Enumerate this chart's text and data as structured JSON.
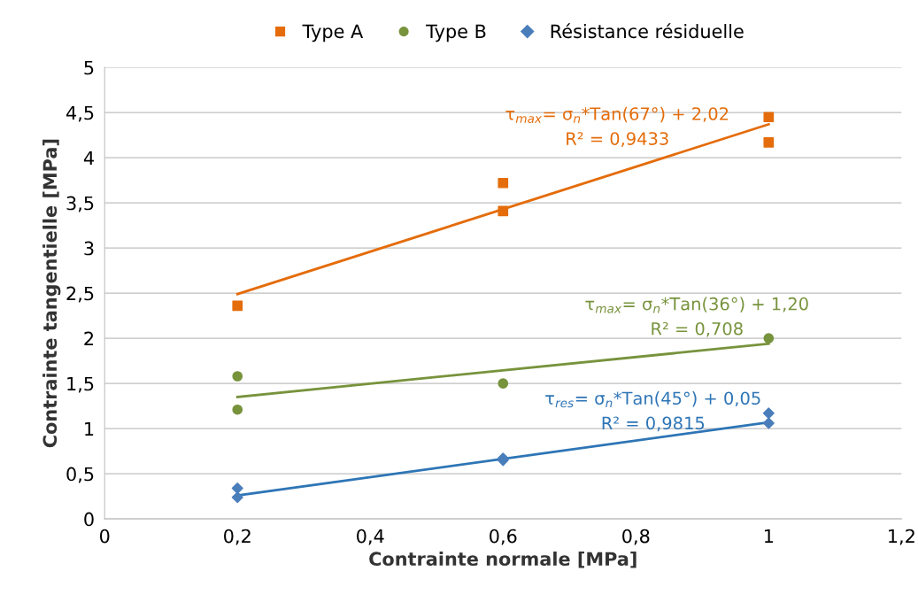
{
  "chart_data": {
    "type": "scatter",
    "xlabel": "Contrainte normale [MPa]",
    "ylabel": "Contrainte tangentielle [MPa]",
    "xlim": [
      0,
      1.2
    ],
    "xticks": [
      0,
      {
        "value": 0.2,
        "label": "0,2"
      },
      {
        "value": 0.4,
        "label": "0,4"
      },
      {
        "value": 0.6,
        "label": "0,6"
      },
      {
        "value": 0.8,
        "label": "0,8"
      },
      1,
      {
        "value": 1.2,
        "label": "1,2"
      }
    ],
    "ylim": [
      0,
      5
    ],
    "yticks": [
      0,
      {
        "value": 0.5,
        "label": "0,5"
      },
      1,
      {
        "value": 1.5,
        "label": "1,5"
      },
      2,
      {
        "value": 2.5,
        "label": "2,5"
      },
      3,
      {
        "value": 3.5,
        "label": "3,5"
      },
      4,
      {
        "value": 4.5,
        "label": "4,5"
      },
      5
    ],
    "grid": "y",
    "legend": "top",
    "series": [
      {
        "name": "Type A",
        "color": "#e46c0a",
        "marker": "square",
        "x": [
          0.2,
          0.6,
          0.6,
          1,
          1
        ],
        "values": [
          2.36,
          3.72,
          3.41,
          4.45,
          4.17
        ]
      },
      {
        "name": "Type B",
        "color": "#77933c",
        "marker": "circle",
        "x": [
          0.2,
          0.2,
          0.6,
          1
        ],
        "values": [
          1.58,
          1.21,
          1.5,
          2.0
        ]
      },
      {
        "name": "Résistance résiduelle",
        "color": "#4a7ebb",
        "marker": "diamond",
        "x": [
          0.2,
          0.2,
          0.6,
          0.6,
          1,
          1
        ],
        "values": [
          0.34,
          0.24,
          0.67,
          0.65,
          1.17,
          1.06
        ]
      },
      {
        "type": "line",
        "color": "#e46c0a",
        "marker": "none",
        "x": [
          0.2,
          1
        ],
        "values": [
          2.49,
          4.37
        ]
      },
      {
        "type": "line",
        "color": "#77933c",
        "marker": "none",
        "x": [
          0.2,
          1
        ],
        "values": [
          1.35,
          1.94
        ]
      },
      {
        "type": "line",
        "color": "#2e75b6",
        "marker": "none",
        "x": [
          0.2,
          1
        ],
        "values": [
          0.26,
          1.07
        ]
      }
    ],
    "annotations": [
      "τ$_{max}$= σ$_{n}$*Tan(67°) + 2,02",
      "R² = 0,9433",
      "τ$_{max}$= σ$_{n}$*Tan(36°) + 1,20",
      "R² = 0,708",
      "τ$_{res}$= σ$_{n}$*Tan(45°) + 0,05",
      "R² = 0,9815"
    ]
  }
}
